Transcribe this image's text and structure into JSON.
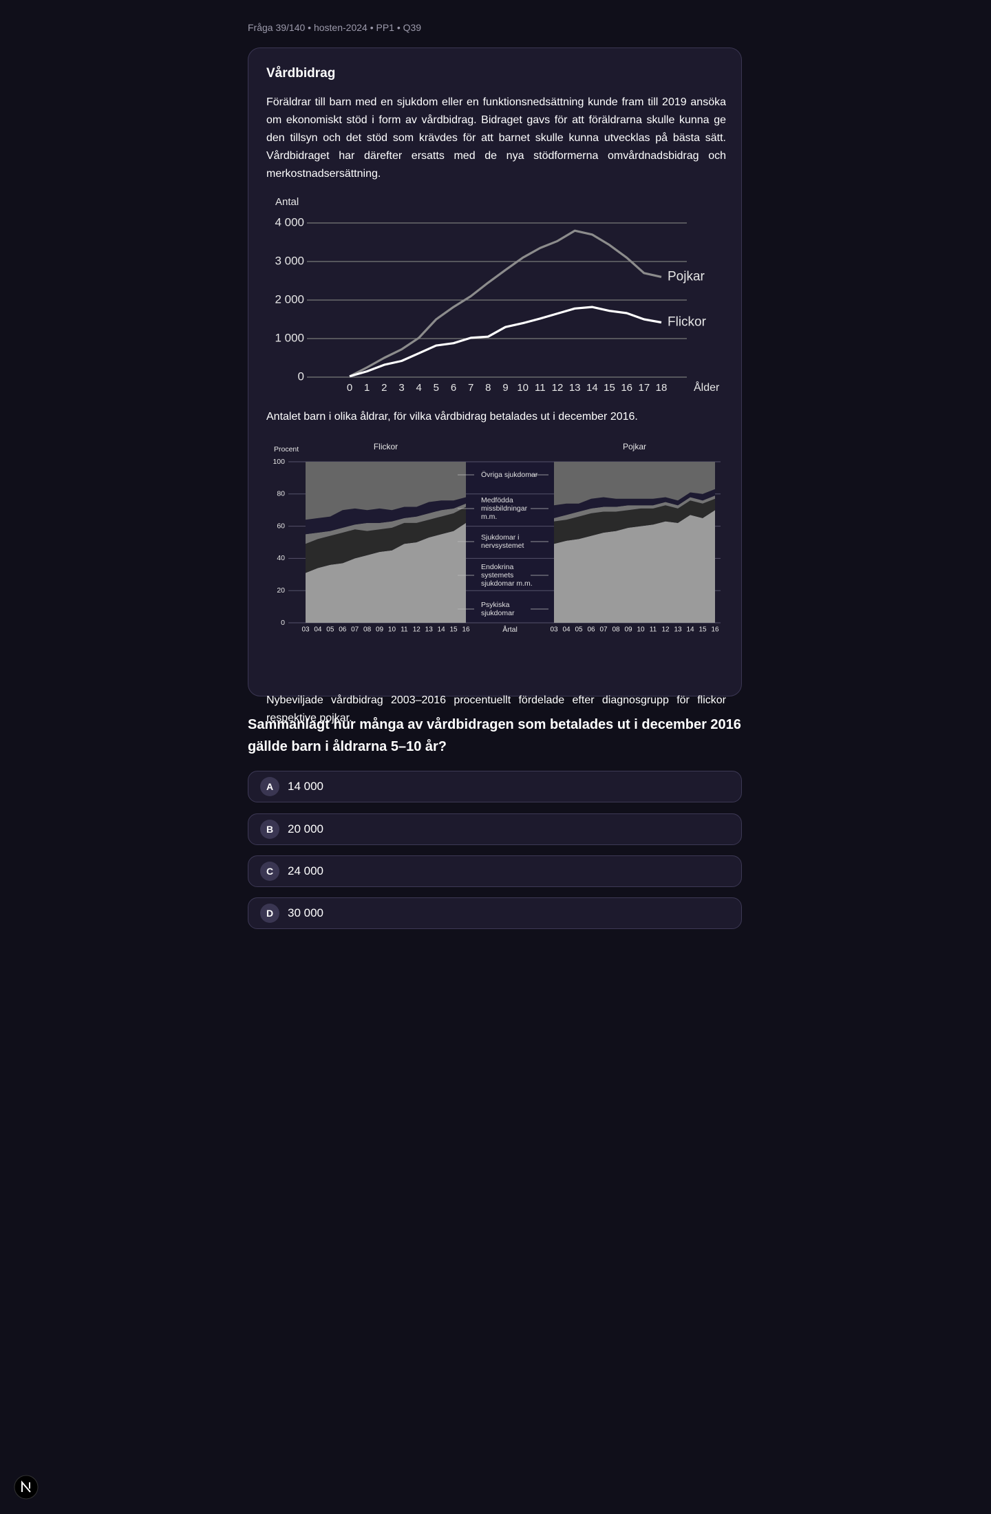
{
  "header": {
    "breadcrumb": "Fråga 39/140 • hosten-2024 • PP1 • Q39"
  },
  "passage": {
    "title": "Vårdbidrag",
    "text": "Föräldrar till barn med en sjukdom eller en funktionsnedsättning kunde fram till 2019 ansöka om ekonomiskt stöd i form av vårdbidrag. Bidraget gavs för att föräldrarna skulle kunna ge den tillsyn och det stöd som krävdes för att barnet skulle kunna utvecklas på bästa sätt. Vårdbidraget har därefter ersatts med de nya stödformerna omvårdnadsbidrag och merkostnadsersättning."
  },
  "chart_data": [
    {
      "type": "line",
      "y_label": "Antal",
      "x_label": "Ålder",
      "caption": "Antalet barn i olika åldrar, för vilka vårdbidrag betalades ut i december 2016.",
      "x": [
        0,
        1,
        2,
        3,
        4,
        5,
        6,
        7,
        8,
        9,
        10,
        11,
        12,
        13,
        14,
        15,
        16,
        17,
        18
      ],
      "xlim": [
        0,
        18
      ],
      "xticks": [
        0,
        1,
        2,
        3,
        4,
        5,
        6,
        7,
        8,
        9,
        10,
        11,
        12,
        13,
        14,
        15,
        16,
        17,
        18
      ],
      "ylim": [
        0,
        4000
      ],
      "yticks": [
        0,
        {
          "value": 1000,
          "label": "1 000"
        },
        {
          "value": 2000,
          "label": "2 000"
        },
        {
          "value": 3000,
          "label": "3 000"
        },
        {
          "value": 4000,
          "label": "4 000"
        }
      ],
      "grid": true,
      "series": [
        {
          "name": "Pojkar",
          "color": "#8c8c8c",
          "values": [
            20,
            250,
            500,
            720,
            1020,
            1500,
            1820,
            2100,
            2450,
            2780,
            3100,
            3350,
            3530,
            3800,
            3700,
            3430,
            3100,
            2700,
            2600
          ]
        },
        {
          "name": "Flickor",
          "color": "#ffffff",
          "values": [
            20,
            150,
            320,
            420,
            620,
            820,
            880,
            1020,
            1050,
            1300,
            1400,
            1520,
            1650,
            1780,
            1820,
            1720,
            1660,
            1500,
            1420
          ]
        }
      ]
    },
    {
      "type": "area",
      "stacked": true,
      "y_label": "Procent",
      "x_label": "Årtal",
      "caption": "Nybeviljade vårdbidrag 2003–2016 procentuellt fördelade efter diagnosgrupp för flickor respektive pojkar.",
      "categories": [
        "03",
        "04",
        "05",
        "06",
        "07",
        "08",
        "09",
        "10",
        "11",
        "12",
        "13",
        "14",
        "15",
        "16"
      ],
      "ylim": [
        0,
        100
      ],
      "yticks": [
        0,
        20,
        40,
        60,
        80,
        100
      ],
      "grid": true,
      "series": [
        {
          "name": "Psykiska sjukdomar",
          "color": "#9b9b9b"
        },
        {
          "name": "Endokrina systemets sjukdomar m.m.",
          "color": "#2a2a2a"
        },
        {
          "name": "Sjukdomar i nervsystemet",
          "color": "#747474"
        },
        {
          "name": "Medfödda missbildningar m.m.",
          "color": "#1d1a31"
        },
        {
          "name": "Övriga sjukdomar",
          "color": "#666666"
        }
      ],
      "panels": [
        {
          "title": "Flickor",
          "values": [
            [
              31,
              34,
              36,
              37,
              40,
              42,
              44,
              45,
              49,
              50,
              53,
              55,
              57,
              62
            ],
            [
              18,
              18,
              18,
              19,
              18,
              15,
              14,
              14,
              13,
              12,
              11,
              11,
              11,
              10
            ],
            [
              6,
              4,
              3,
              3,
              3,
              5,
              4,
              4,
              3,
              4,
              4,
              4,
              3,
              2
            ],
            [
              9,
              9,
              9,
              11,
              10,
              8,
              9,
              7,
              7,
              6,
              7,
              6,
              5,
              4
            ],
            [
              36,
              35,
              34,
              30,
              29,
              30,
              29,
              30,
              28,
              28,
              25,
              24,
              24,
              22
            ]
          ]
        },
        {
          "title": "Pojkar",
          "values": [
            [
              49,
              51,
              52,
              54,
              56,
              57,
              59,
              60,
              61,
              63,
              62,
              67,
              65,
              70
            ],
            [
              14,
              13,
              14,
              14,
              13,
              12,
              11,
              11,
              10,
              10,
              9,
              9,
              9,
              7
            ],
            [
              2,
              3,
              3,
              3,
              3,
              3,
              3,
              2,
              2,
              2,
              2,
              2,
              2,
              2
            ],
            [
              8,
              7,
              5,
              6,
              6,
              5,
              4,
              4,
              4,
              3,
              3,
              3,
              4,
              4
            ],
            [
              27,
              26,
              26,
              23,
              22,
              23,
              23,
              23,
              23,
              22,
              24,
              19,
              20,
              17
            ]
          ]
        }
      ]
    }
  ],
  "question": {
    "text": "Sammanlagt hur många av vårdbidragen som betalades ut i december 2016 gällde barn i åldrarna 5–10 år?",
    "options": [
      {
        "letter": "A",
        "text": "14 000"
      },
      {
        "letter": "B",
        "text": "20 000"
      },
      {
        "letter": "C",
        "text": "24 000"
      },
      {
        "letter": "D",
        "text": "30 000"
      }
    ]
  }
}
